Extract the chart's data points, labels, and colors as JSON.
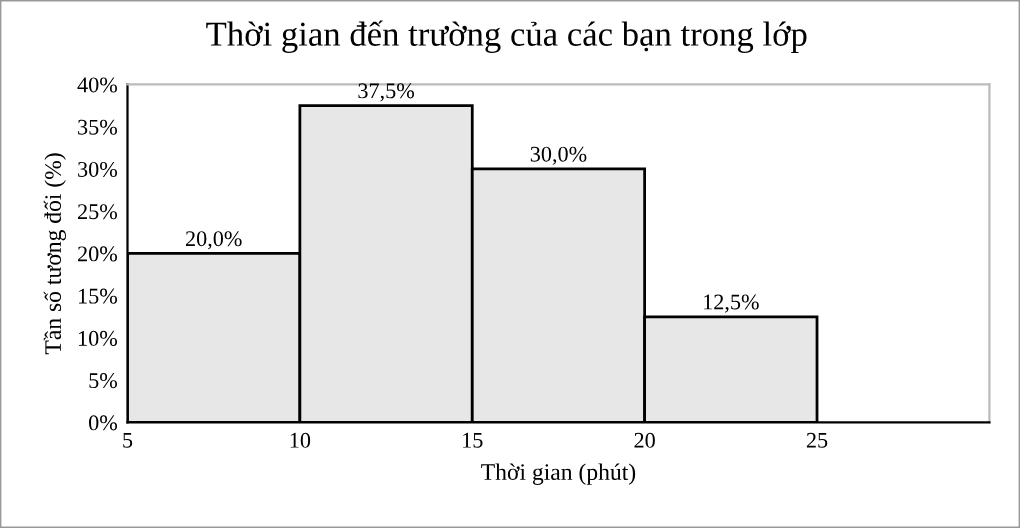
{
  "chart_data": {
    "type": "histogram",
    "title": "Thời gian đến trường của các bạn trong lớp",
    "xlabel": "Thời gian (phút)",
    "ylabel": "Tần số tương đối (%)",
    "bins": [
      5,
      10,
      15,
      20,
      25
    ],
    "values": [
      20,
      37.5,
      30,
      12.5
    ],
    "color": "#e7e7e7",
    "value_labels": [
      "20,0%",
      "37,5%",
      "30,0%",
      "12,5%"
    ],
    "xlim": [
      5,
      30
    ],
    "xticks": [
      5,
      10,
      15,
      20,
      25
    ],
    "ylim": [
      0,
      40
    ],
    "yticks": [
      {
        "value": 0,
        "label": "0%"
      },
      {
        "value": 5,
        "label": "5%"
      },
      {
        "value": 10,
        "label": "10%"
      },
      {
        "value": 15,
        "label": "15%"
      },
      {
        "value": 20,
        "label": "20%"
      },
      {
        "value": 25,
        "label": "25%"
      },
      {
        "value": 30,
        "label": "30%"
      },
      {
        "value": 35,
        "label": "35%"
      },
      {
        "value": 40,
        "label": "40%"
      }
    ],
    "grid": false
  }
}
